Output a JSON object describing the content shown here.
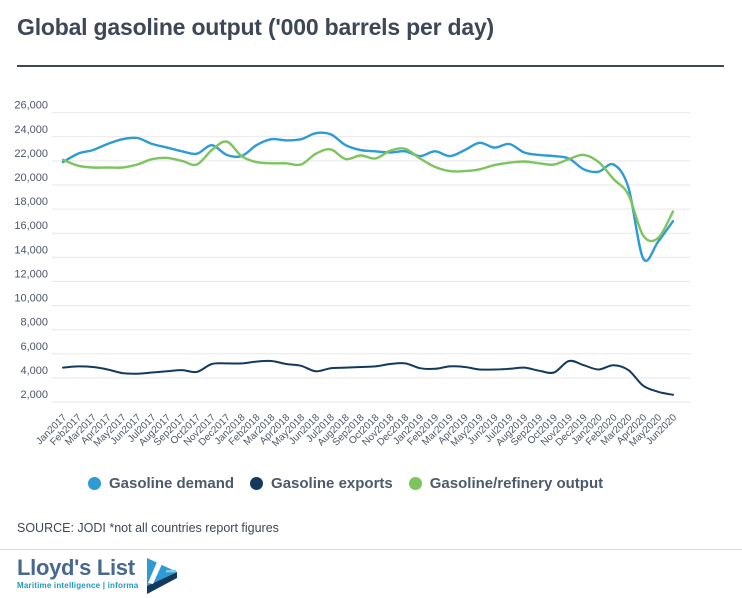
{
  "header": {
    "title": "Global gasoline output ('000 barrels per day)"
  },
  "chart_data": {
    "type": "line",
    "title": "Global gasoline output ('000 barrels per day)",
    "xlabel": "",
    "ylabel": "",
    "grid": "horizontal-only",
    "legend_position": "bottom",
    "ylim": [
      2000,
      26000
    ],
    "yticks": {
      "values": [
        2000,
        4000,
        6000,
        8000,
        10000,
        12000,
        14000,
        16000,
        18000,
        20000,
        22000,
        24000,
        26000
      ],
      "labels": [
        "2,000",
        "4,000",
        "6,000",
        "8,000",
        "10,000",
        "12,000",
        "14,000",
        "16,000",
        "18,000",
        "20,000",
        "22,000",
        "24,000",
        "26,000"
      ]
    },
    "x": [
      "Jan2017",
      "Feb2017",
      "Mar2017",
      "Apr2017",
      "May2017",
      "Jun2017",
      "Jul2017",
      "Aug2017",
      "Sep2017",
      "Oct2017",
      "Nov2017",
      "Dec2017",
      "Jan2018",
      "Feb2018",
      "Mar2018",
      "Apr2018",
      "May2018",
      "Jun2018",
      "Jul2018",
      "Aug2018",
      "Sep2018",
      "Oct2018",
      "Nov2018",
      "Dec2018",
      "Jan2019",
      "Feb2019",
      "Mar2019",
      "Apr2019",
      "May2019",
      "Jun2019",
      "Jul2019",
      "Aug2019",
      "Sep2019",
      "Oct2019",
      "Nov2019",
      "Dec2019",
      "Jan2020",
      "Feb2020",
      "Mar2020",
      "Apr2020",
      "May2020",
      "Jun2020"
    ],
    "series": [
      {
        "name": "Gasoline demand",
        "color": "#2E9BD6",
        "values": [
          21900,
          22600,
          22900,
          23400,
          23800,
          23900,
          23400,
          23100,
          22800,
          22600,
          23300,
          22500,
          22400,
          23300,
          23800,
          23700,
          23800,
          24300,
          24200,
          23300,
          22900,
          22800,
          22700,
          22800,
          22400,
          22800,
          22400,
          22900,
          23500,
          23100,
          23400,
          22700,
          22500,
          22400,
          22200,
          21300,
          21100,
          21700,
          19800,
          13900,
          15300,
          17000
        ]
      },
      {
        "name": "Gasoline exports",
        "color": "#123A5E",
        "values": [
          4850,
          4950,
          4900,
          4700,
          4400,
          4350,
          4450,
          4550,
          4650,
          4500,
          5150,
          5200,
          5200,
          5350,
          5400,
          5150,
          5000,
          4550,
          4800,
          4850,
          4900,
          4950,
          5150,
          5200,
          4800,
          4750,
          4950,
          4900,
          4700,
          4700,
          4750,
          4850,
          4600,
          4450,
          5400,
          5050,
          4700,
          5050,
          4650,
          3350,
          2850,
          2600
        ]
      },
      {
        "name": "Gasoline/refinery output",
        "color": "#7DC45F",
        "values": [
          22100,
          21600,
          21450,
          21450,
          21450,
          21700,
          22150,
          22250,
          22000,
          21700,
          22900,
          23600,
          22400,
          21900,
          21800,
          21800,
          21700,
          22600,
          22950,
          22150,
          22450,
          22200,
          22850,
          23000,
          22200,
          21500,
          21150,
          21150,
          21300,
          21650,
          21850,
          21950,
          21800,
          21700,
          22150,
          22500,
          21900,
          20500,
          19200,
          15800,
          15600,
          17800
        ]
      }
    ]
  },
  "footer": {
    "source": "SOURCE: JODI *not all countries report figures",
    "logo": {
      "name": "Lloyd's List",
      "tagline": "Maritime intelligence | informa"
    }
  },
  "colors": {
    "title_text": "#3E4757",
    "axis_text": "#4C5667",
    "gridline": "#E7E7E9",
    "legend_text": "#4C5A6B",
    "logo_name": "#47688F",
    "logo_tagline": "#2098BE"
  }
}
